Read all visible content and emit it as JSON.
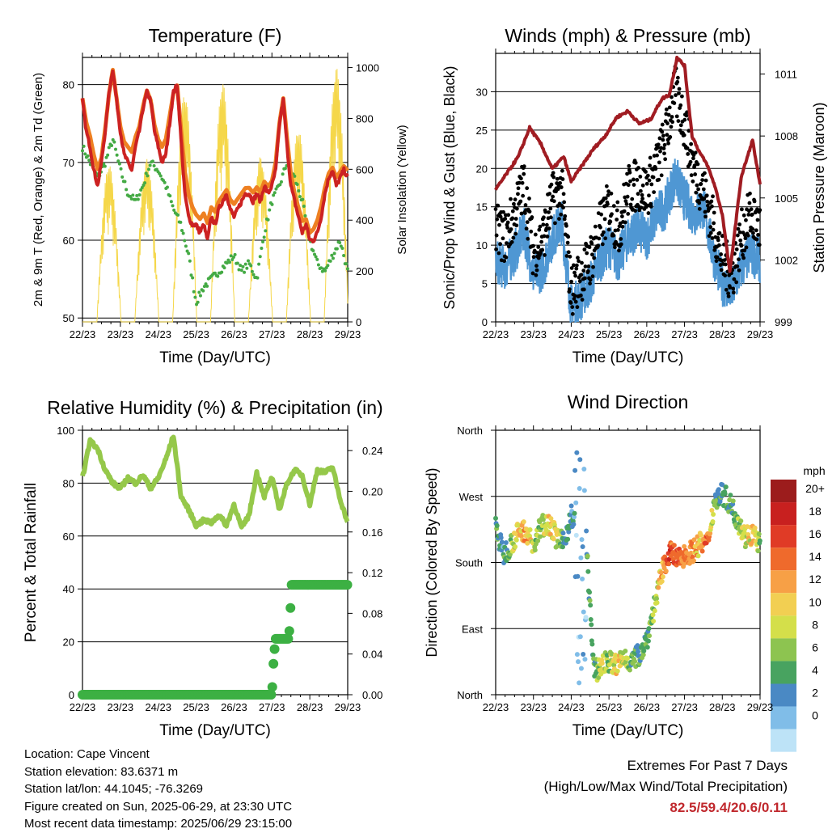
{
  "chart_data": [
    {
      "type": "line",
      "title": "Temperature (F)",
      "xlabel": "Time (Day/UTC)",
      "ylabel": "2m & 9m T (Red, Orange) & 2m Td (Green)",
      "ylabel_right": "Solar Insolation (Yellow)",
      "xticks": [
        "22/23",
        "23/23",
        "24/23",
        "25/23",
        "26/23",
        "27/23",
        "28/23",
        "29/23"
      ],
      "ylim": [
        49.5,
        83.5
      ],
      "yticks": [
        50,
        60,
        70,
        80
      ],
      "ylim_right": [
        0,
        1040
      ],
      "yticks_right": [
        0,
        200,
        400,
        600,
        800,
        1000
      ],
      "grid": "horizontal",
      "series": [
        {
          "name": "2m T",
          "color": "#cc2222",
          "x": [
            0,
            0.1,
            0.2,
            0.3,
            0.4,
            0.5,
            0.6,
            0.7,
            0.8,
            0.9,
            1.0,
            1.1,
            1.2,
            1.3,
            1.4,
            1.5,
            1.6,
            1.7,
            1.8,
            1.9,
            2.0,
            2.1,
            2.2,
            2.3,
            2.4,
            2.5,
            2.6,
            2.7,
            2.8,
            2.9,
            3.0,
            3.1,
            3.2,
            3.3,
            3.4,
            3.5,
            3.6,
            3.7,
            3.8,
            3.9,
            4.0,
            4.1,
            4.2,
            4.3,
            4.4,
            4.5,
            4.6,
            4.7,
            4.8,
            4.9,
            5.0,
            5.1,
            5.2,
            5.3,
            5.4,
            5.5,
            5.6,
            5.7,
            5.8,
            5.9,
            6.0,
            6.1,
            6.2,
            6.3,
            6.4,
            6.5,
            6.6,
            6.7,
            6.8,
            6.9,
            7.0
          ],
          "values": [
            78,
            74,
            72,
            69,
            67,
            70,
            74,
            79,
            82,
            78,
            74,
            71,
            70,
            69,
            72,
            74,
            77,
            79,
            78,
            74,
            72,
            70,
            71,
            75,
            79,
            80,
            73,
            66,
            63,
            62,
            62,
            61,
            62,
            60,
            63,
            62,
            64,
            65,
            66,
            64,
            63,
            64,
            65,
            66,
            66,
            65,
            66,
            65,
            67,
            66,
            67,
            69,
            75,
            78,
            72,
            67,
            65,
            63,
            61,
            62,
            60,
            60,
            61,
            63,
            66,
            68,
            69,
            67,
            68,
            69,
            68
          ]
        },
        {
          "name": "9m T",
          "color": "#ee8022",
          "x": [
            0,
            0.5,
            0.8,
            1.0,
            1.5,
            1.7,
            2.0,
            2.5,
            3.0,
            4.0,
            5.0,
            5.3,
            5.6,
            6.0,
            6.5,
            7.0
          ],
          "values": [
            77,
            70,
            80,
            74,
            74,
            78,
            73,
            78,
            64,
            66,
            67,
            77,
            66,
            61,
            68,
            69
          ]
        },
        {
          "name": "2m Td",
          "color": "#44aa44",
          "x": [
            0,
            0.2,
            0.4,
            0.6,
            0.8,
            1.0,
            1.2,
            1.4,
            1.6,
            1.8,
            2.0,
            2.2,
            2.4,
            2.6,
            2.8,
            3.0,
            3.2,
            3.4,
            3.6,
            3.8,
            4.0,
            4.2,
            4.4,
            4.6,
            4.8,
            5.0,
            5.2,
            5.4,
            5.6,
            5.8,
            6.0,
            6.2,
            6.4,
            6.6,
            6.8,
            7.0
          ],
          "values": [
            72,
            70,
            68,
            70,
            73,
            69,
            66,
            65,
            67,
            70,
            69,
            67,
            64,
            62,
            58,
            52,
            54,
            55,
            56,
            57,
            58,
            56,
            57,
            55,
            61,
            65,
            67,
            70,
            68,
            65,
            60,
            57,
            56,
            58,
            60,
            56
          ]
        },
        {
          "name": "Solar Insolation",
          "color": "#f5d74a",
          "axis": "right",
          "peaks_x": [
            0.7,
            1.7,
            2.7,
            3.7,
            4.7,
            5.7,
            6.7
          ],
          "peaks": [
            620,
            640,
            900,
            940,
            650,
            760,
            1000
          ]
        }
      ]
    },
    {
      "type": "scatter",
      "title": "Winds (mph) & Pressure (mb)",
      "xlabel": "Time (Day/UTC)",
      "ylabel": "Sonic/Prop Wind & Gust (Blue, Black)",
      "ylabel_right": "Station Pressure (Maroon)",
      "xticks": [
        "22/23",
        "23/23",
        "24/23",
        "25/23",
        "26/23",
        "27/23",
        "28/23",
        "29/23"
      ],
      "ylim": [
        0,
        35
      ],
      "yticks": [
        0,
        5,
        10,
        15,
        20,
        25,
        30
      ],
      "ylim_right": [
        999,
        1012
      ],
      "yticks_right": [
        999,
        1002,
        1005,
        1008,
        1011
      ],
      "grid": "horizontal",
      "series": [
        {
          "name": "Wind",
          "color": "#4f97d3",
          "x": [
            0,
            0.25,
            0.5,
            0.75,
            1.0,
            1.25,
            1.5,
            1.75,
            2.0,
            2.25,
            2.5,
            2.75,
            3.0,
            3.25,
            3.5,
            3.75,
            4.0,
            4.25,
            4.5,
            4.75,
            5.0,
            5.25,
            5.5,
            5.75,
            6.0,
            6.25,
            6.5,
            6.75,
            7.0
          ],
          "values": [
            8,
            7,
            9,
            12,
            6,
            7,
            11,
            13,
            2,
            3,
            5,
            8,
            10,
            8,
            11,
            12,
            11,
            14,
            15,
            19,
            16,
            14,
            15,
            9,
            5,
            4,
            7,
            9,
            8
          ]
        },
        {
          "name": "Gust",
          "color": "#000000",
          "x": [
            0,
            0.25,
            0.5,
            0.75,
            1.0,
            1.25,
            1.5,
            1.75,
            2.0,
            2.25,
            2.5,
            2.75,
            3.0,
            3.25,
            3.5,
            3.75,
            4.0,
            4.25,
            4.5,
            4.75,
            5.0,
            5.25,
            5.5,
            5.75,
            6.0,
            6.25,
            6.5,
            6.75,
            7.0
          ],
          "values": [
            12,
            11,
            14,
            18,
            9,
            11,
            16,
            17,
            4,
            6,
            8,
            12,
            15,
            12,
            17,
            18,
            17,
            20,
            24,
            30,
            26,
            20,
            17,
            13,
            8,
            6,
            11,
            14,
            12
          ]
        },
        {
          "name": "Pressure",
          "color": "#a01c22",
          "axis": "right",
          "x": [
            0,
            0.3,
            0.6,
            0.9,
            1.2,
            1.5,
            1.8,
            2.0,
            2.3,
            2.6,
            2.9,
            3.2,
            3.5,
            3.8,
            4.1,
            4.4,
            4.6,
            4.8,
            5.0,
            5.2,
            5.4,
            5.6,
            5.8,
            6.0,
            6.2,
            6.5,
            6.8,
            7.0
          ],
          "values": [
            1005.4,
            1006.2,
            1007.0,
            1008.4,
            1007.6,
            1006.4,
            1007.0,
            1005.8,
            1006.6,
            1007.4,
            1008.0,
            1008.9,
            1009.2,
            1008.6,
            1008.8,
            1009.8,
            1010.0,
            1011.8,
            1011.4,
            1008.0,
            1007.2,
            1006.6,
            1005.6,
            1004.2,
            1001.4,
            1006.0,
            1007.8,
            1005.6
          ]
        }
      ]
    },
    {
      "type": "line",
      "title": "Relative Humidity (%) & Precipitation (in)",
      "xlabel": "Time (Day/UTC)",
      "ylabel": "Percent & Total Rainfall",
      "xticks": [
        "22/23",
        "23/23",
        "24/23",
        "25/23",
        "26/23",
        "27/23",
        "28/23",
        "29/23"
      ],
      "ylim": [
        0,
        100
      ],
      "yticks": [
        0,
        20,
        40,
        60,
        80,
        100
      ],
      "ylim_right": [
        0,
        0.26
      ],
      "yticks_right": [
        "0.00",
        "0.04",
        "0.08",
        "0.12",
        "0.16",
        "0.20",
        "0.24"
      ],
      "grid": "horizontal",
      "series": [
        {
          "name": "RH",
          "color": "#95c84a",
          "x": [
            0,
            0.2,
            0.4,
            0.6,
            0.8,
            1.0,
            1.2,
            1.4,
            1.6,
            1.8,
            2.0,
            2.2,
            2.4,
            2.6,
            2.8,
            3.0,
            3.2,
            3.4,
            3.6,
            3.8,
            4.0,
            4.2,
            4.4,
            4.6,
            4.8,
            5.0,
            5.2,
            5.4,
            5.6,
            5.8,
            6.0,
            6.2,
            6.4,
            6.6,
            6.8,
            7.0
          ],
          "values": [
            82,
            96,
            93,
            85,
            80,
            78,
            82,
            80,
            83,
            78,
            82,
            89,
            98,
            75,
            70,
            64,
            66,
            65,
            68,
            64,
            72,
            63,
            68,
            84,
            75,
            82,
            70,
            80,
            85,
            83,
            72,
            85,
            84,
            86,
            74,
            65
          ]
        },
        {
          "name": "Total Precipitation",
          "color": "#3cb043",
          "axis": "right",
          "x": [
            0,
            5.0,
            5.05,
            5.1,
            5.45,
            5.52,
            7.0
          ],
          "values": [
            0,
            0,
            0.038,
            0.055,
            0.055,
            0.108,
            0.108
          ]
        }
      ]
    },
    {
      "type": "scatter",
      "title": "Wind Direction",
      "xlabel": "Time (Day/UTC)",
      "ylabel": "Direction (Colored By Speed)",
      "xticks": [
        "22/23",
        "23/23",
        "24/23",
        "25/23",
        "26/23",
        "27/23",
        "28/23",
        "29/23"
      ],
      "ylim": [
        0,
        360
      ],
      "yticks": [
        "North",
        "East",
        "South",
        "West",
        "North"
      ],
      "grid": "horizontal",
      "legend": {
        "title": "mph",
        "labels": [
          "20+",
          "18",
          "16",
          "14",
          "12",
          "10",
          "8",
          "6",
          "4",
          "2",
          "0"
        ],
        "colors": [
          "#9c1c1c",
          "#c8201f",
          "#e03b26",
          "#ef6a2c",
          "#f7a046",
          "#f2cf52",
          "#d4df4a",
          "#8dc450",
          "#48a360",
          "#4a89c4",
          "#80bde8",
          "#bde3f7"
        ]
      },
      "series": [
        {
          "name": "Direction",
          "x": [
            0,
            0.2,
            0.4,
            0.6,
            0.8,
            1.0,
            1.2,
            1.4,
            1.6,
            1.8,
            2.0,
            2.2,
            2.4,
            2.6,
            2.8,
            3.0,
            3.2,
            3.4,
            3.6,
            3.8,
            4.0,
            4.2,
            4.4,
            4.6,
            4.8,
            5.0,
            5.2,
            5.4,
            5.6,
            5.8,
            6.0,
            6.2,
            6.4,
            6.6,
            6.8,
            7.0
          ],
          "values": [
            230,
            190,
            205,
            220,
            225,
            200,
            230,
            235,
            215,
            205,
            245,
            220,
            210,
            30,
            40,
            45,
            40,
            50,
            45,
            55,
            75,
            120,
            165,
            195,
            185,
            190,
            195,
            205,
            205,
            265,
            275,
            260,
            240,
            215,
            220,
            205
          ],
          "speeds": [
            6,
            4,
            8,
            12,
            14,
            10,
            8,
            12,
            10,
            6,
            4,
            3,
            5,
            6,
            10,
            8,
            12,
            10,
            6,
            6,
            6,
            8,
            14,
            18,
            16,
            16,
            14,
            12,
            16,
            6,
            5,
            6,
            8,
            10,
            12,
            8
          ]
        }
      ]
    }
  ],
  "info": {
    "location": "Location: Cape Vincent",
    "elevation": "Station elevation: 83.6371 m",
    "latlon": "Station lat/lon: 44.1045; -76.3269",
    "created": "Figure created on Sun, 2025-06-29, at 23:30 UTC",
    "timestamp": "Most recent data timestamp: 2025/06/29 23:15:00"
  },
  "extremes": {
    "title": "Extremes For Past 7 Days",
    "subtitle": "(High/Low/Max Wind/Total Precipitation)",
    "values": "82.5/59.4/20.6/0.11"
  }
}
